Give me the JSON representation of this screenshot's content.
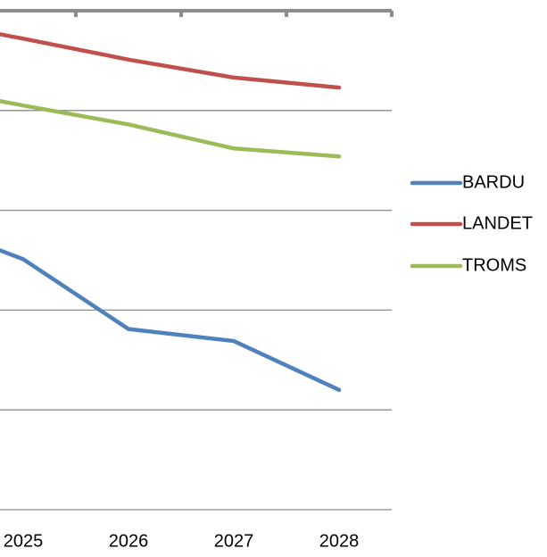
{
  "chart_data": {
    "type": "line",
    "categories": [
      null,
      "2025",
      "2026",
      "2027",
      "2028"
    ],
    "series": [
      {
        "name": "BARDU",
        "color": "#4f81bd",
        "values": [
          2.91,
          2.51,
          1.81,
          1.69,
          1.2
        ]
      },
      {
        "name": "LANDET",
        "color": "#c0504d",
        "values": [
          4.92,
          4.72,
          4.51,
          4.33,
          4.23
        ]
      },
      {
        "name": "TROMS",
        "color": "#9bbb59",
        "values": [
          4.25,
          4.05,
          3.86,
          3.62,
          3.54
        ]
      }
    ],
    "ylim": [
      0,
      5
    ],
    "yticks": [
      0,
      1,
      2,
      3,
      4,
      5
    ],
    "grid": true,
    "legend": "right"
  }
}
